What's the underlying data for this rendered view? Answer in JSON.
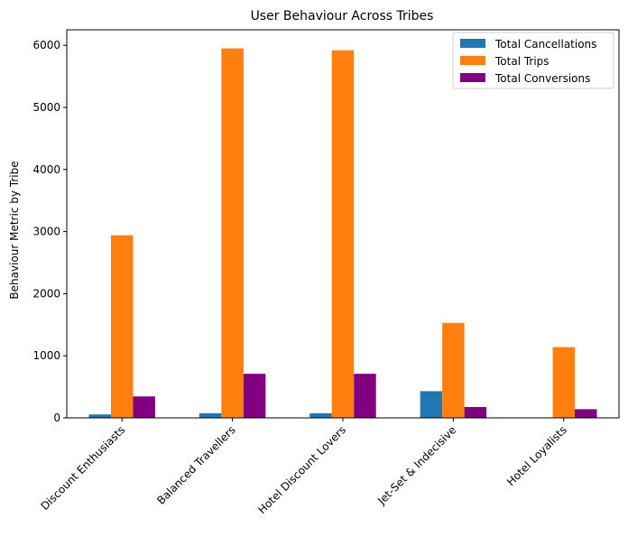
{
  "chart_data": {
    "type": "bar",
    "title": "User Behaviour Across Tribes",
    "xlabel": "",
    "ylabel": "Behaviour Metric by Tribe",
    "categories": [
      "Discount Enthusiasts",
      "Balanced Travellers",
      "Hotel Discount Lovers",
      "Jet-Set & Indecisive",
      "Hotel Loyalists"
    ],
    "series": [
      {
        "name": "Total Cancellations",
        "color": "#1f77b4",
        "values": [
          55,
          75,
          75,
          430,
          0
        ]
      },
      {
        "name": "Total Trips",
        "color": "#ff7f0e",
        "values": [
          2940,
          5950,
          5920,
          1530,
          1140
        ]
      },
      {
        "name": "Total Conversions",
        "color": "#800080",
        "values": [
          345,
          710,
          710,
          175,
          140
        ]
      }
    ],
    "ylim": [
      0,
      6250
    ],
    "yticks": [
      0,
      1000,
      2000,
      3000,
      4000,
      5000,
      6000
    ],
    "grid": false,
    "legend_position": "top-right"
  }
}
